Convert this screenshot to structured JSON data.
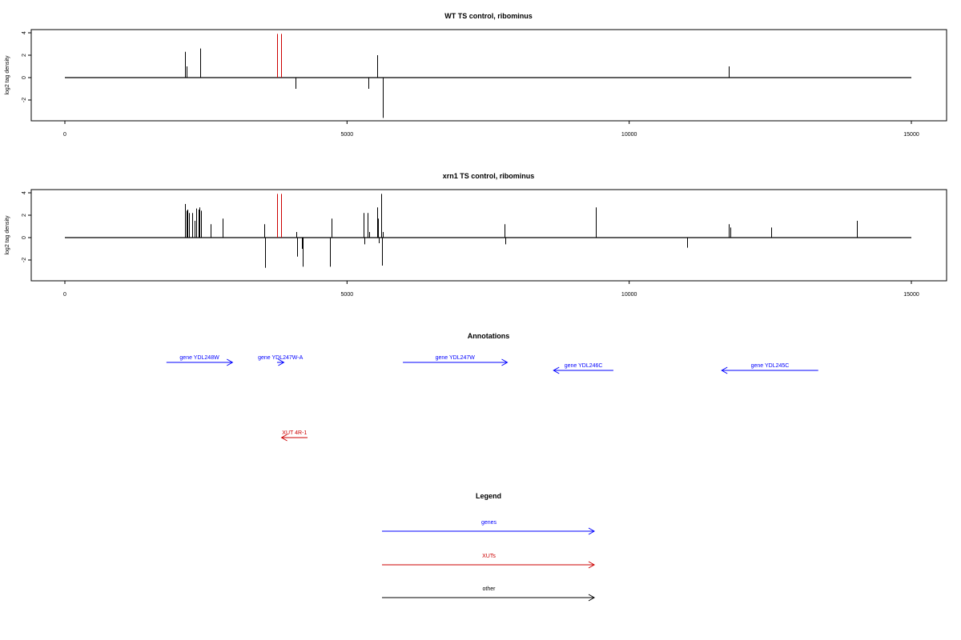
{
  "chart_data": [
    {
      "type": "bar",
      "title": "WT TS control, ribominus",
      "ylabel": "log2 tag density",
      "xlim": [
        0,
        15000
      ],
      "ylim": [
        -3.6,
        4.0
      ],
      "xticks": [
        "0",
        "5000",
        "10000",
        "15000"
      ],
      "yticks": [
        "4",
        "2",
        "0",
        "-2"
      ],
      "baseline": 0,
      "series": [
        {
          "color": "#000000",
          "points": [
            {
              "x": 2135,
              "y": 2.3
            },
            {
              "x": 2155,
              "y": 1.0
            },
            {
              "x": 2395,
              "y": 2.6
            },
            {
              "x": 2405,
              "y": 2.2
            },
            {
              "x": 4090,
              "y": -1.0
            },
            {
              "x": 5380,
              "y": -1.0
            },
            {
              "x": 5530,
              "y": 2.0
            },
            {
              "x": 5635,
              "y": -3.6
            },
            {
              "x": 11770,
              "y": 1.0
            }
          ]
        },
        {
          "color": "#cc0000",
          "points": [
            {
              "x": 3760,
              "y": 3.9
            },
            {
              "x": 3830,
              "y": 3.9
            }
          ]
        }
      ]
    },
    {
      "type": "bar",
      "title": "xrn1 TS control, ribominus",
      "ylabel": "log2 tag density",
      "xlim": [
        0,
        15000
      ],
      "ylim": [
        -3.6,
        4.0
      ],
      "xticks": [
        "0",
        "5000",
        "10000",
        "15000"
      ],
      "yticks": [
        "4",
        "2",
        "0",
        "-2"
      ],
      "baseline": 0,
      "series": [
        {
          "color": "#000000",
          "points": [
            {
              "x": 2130,
              "y": 3.0
            },
            {
              "x": 2150,
              "y": 2.4
            },
            {
              "x": 2175,
              "y": 2.5
            },
            {
              "x": 2200,
              "y": 2.2
            },
            {
              "x": 2250,
              "y": 2.2
            },
            {
              "x": 2300,
              "y": 1.5
            },
            {
              "x": 2330,
              "y": 2.6
            },
            {
              "x": 2370,
              "y": 2.5
            },
            {
              "x": 2390,
              "y": 2.7
            },
            {
              "x": 2410,
              "y": 2.4
            },
            {
              "x": 2580,
              "y": 1.2
            },
            {
              "x": 2790,
              "y": 1.7
            },
            {
              "x": 3530,
              "y": 1.2
            },
            {
              "x": 3545,
              "y": -2.7
            },
            {
              "x": 4100,
              "y": 0.5
            },
            {
              "x": 4120,
              "y": -1.7
            },
            {
              "x": 4200,
              "y": -1.0
            },
            {
              "x": 4220,
              "y": -2.6
            },
            {
              "x": 4700,
              "y": -2.6
            },
            {
              "x": 4720,
              "y": 1.7
            },
            {
              "x": 5290,
              "y": 2.2
            },
            {
              "x": 5305,
              "y": -0.6
            },
            {
              "x": 5370,
              "y": 2.2
            },
            {
              "x": 5390,
              "y": 0.5
            },
            {
              "x": 5530,
              "y": 2.7
            },
            {
              "x": 5550,
              "y": 1.7
            },
            {
              "x": 5570,
              "y": -0.5
            },
            {
              "x": 5610,
              "y": 3.9
            },
            {
              "x": 5625,
              "y": -2.5
            },
            {
              "x": 5640,
              "y": 0.5
            },
            {
              "x": 7790,
              "y": 1.2
            },
            {
              "x": 7800,
              "y": -0.6
            },
            {
              "x": 9410,
              "y": 2.7
            },
            {
              "x": 11030,
              "y": -0.9
            },
            {
              "x": 11770,
              "y": 1.2
            },
            {
              "x": 11790,
              "y": 0.9
            },
            {
              "x": 12520,
              "y": 0.9
            },
            {
              "x": 14030,
              "y": 1.5
            }
          ]
        },
        {
          "color": "#cc0000",
          "points": [
            {
              "x": 3760,
              "y": 3.9
            },
            {
              "x": 3830,
              "y": 3.9
            }
          ]
        }
      ]
    }
  ],
  "annotations": {
    "title": "Annotations",
    "items": [
      {
        "label": "gene YDL248W",
        "start": 1800,
        "end": 2970,
        "row": 0,
        "color": "#0000ff"
      },
      {
        "label": "gene YDL247W-A",
        "start": 3760,
        "end": 3880,
        "row": 0,
        "color": "#0000ff"
      },
      {
        "label": "gene YDL247W",
        "start": 5990,
        "end": 7840,
        "row": 0,
        "color": "#0000ff"
      },
      {
        "label": "gene YDL246C",
        "start": 9720,
        "end": 8660,
        "row": 1,
        "color": "#0000ff"
      },
      {
        "label": "gene YDL245C",
        "start": 13350,
        "end": 11640,
        "row": 1,
        "color": "#0000ff"
      },
      {
        "label": "XUT 4R-1",
        "start": 4300,
        "end": 3840,
        "row": 2,
        "color": "#cc0000"
      }
    ]
  },
  "legend": {
    "title": "Legend",
    "items": [
      {
        "label": "genes",
        "color": "#0000ff"
      },
      {
        "label": "XUTs",
        "color": "#cc0000"
      },
      {
        "label": "other",
        "color": "#000000"
      }
    ]
  }
}
